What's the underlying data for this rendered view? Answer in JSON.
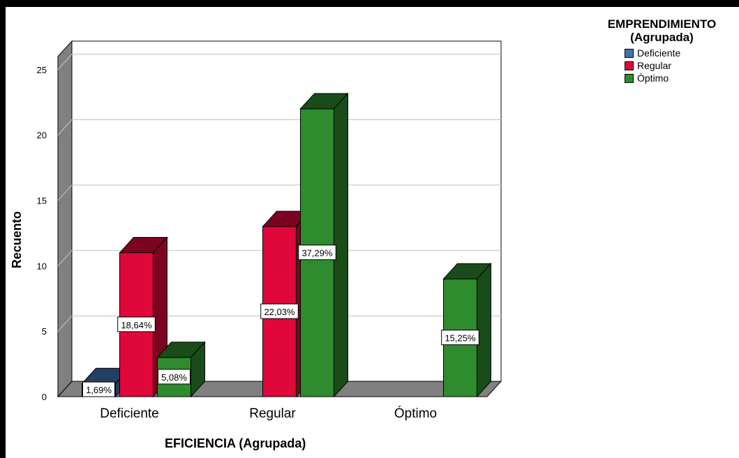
{
  "chart_data": {
    "type": "bar",
    "title": "",
    "xlabel": "EFICIENCIA (Agrupada)",
    "ylabel": "Recuento",
    "ylim": [
      0,
      26
    ],
    "yticks": [
      0,
      5,
      10,
      15,
      20,
      25
    ],
    "categories": [
      "Deficiente",
      "Regular",
      "Óptimo"
    ],
    "legend_title": "EMPRENDIMIENTO (Agrupada)",
    "legend_placement": "top-right",
    "grid": true,
    "series": [
      {
        "name": "Deficiente",
        "color": "#3F73B4",
        "values": [
          1,
          0,
          0
        ],
        "labels": [
          "1,69%",
          "",
          ""
        ]
      },
      {
        "name": "Regular",
        "color": "#E0073A",
        "values": [
          11,
          13,
          0
        ],
        "labels": [
          "18,64%",
          "22,03%",
          ""
        ]
      },
      {
        "name": "Óptimo",
        "color": "#2E8B2E",
        "values": [
          3,
          22,
          9
        ],
        "labels": [
          "5,08%",
          "37,29%",
          "15,25%"
        ]
      }
    ]
  }
}
